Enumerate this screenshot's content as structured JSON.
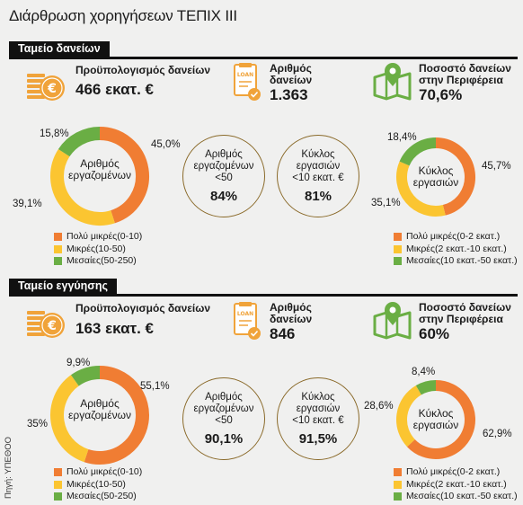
{
  "title": "Διάρθρωση χορηγήσεων ΤΕΠΙΧ ΙΙΙ",
  "source": "Πηγή: ΥΠΕΘΟΟ",
  "colors": {
    "orange": "#f07d33",
    "yellow": "#fbc531",
    "green": "#6aae44",
    "icon_orange": "#f0a33a",
    "icon_green": "#6aae44"
  },
  "sections": [
    {
      "header": "Ταμείο δανείων",
      "kpi_budget": {
        "label": "Προϋπολογισμός δανείων",
        "value": "466 εκατ. €",
        "icon": "coins-icon"
      },
      "kpi_count": {
        "label_1": "Αριθμός",
        "label_2": "δανείων",
        "value": "1.363",
        "icon": "loan-document-icon",
        "icon_text": "LOAN"
      },
      "kpi_region": {
        "label_1": "Ποσοστό δανείων",
        "label_2": "στην Περιφέρεια",
        "value": "70,6%",
        "icon": "map-pin-icon"
      },
      "employees_label_1": "Αριθμός",
      "employees_label_2": "εργαζομένων",
      "stat_employees": {
        "label_1": "Αριθμός",
        "label_2": "εργαζομένων",
        "label_3": "<50",
        "value": "84%"
      },
      "stat_turnover": {
        "label_1": "Κύκλος",
        "label_2": "εργασιών",
        "label_3": "<10 εκατ. €",
        "value": "81%"
      },
      "turnover_label_1": "Κύκλος",
      "turnover_label_2": "εργασιών"
    },
    {
      "header": "Ταμείο εγγύησης",
      "kpi_budget": {
        "label": "Προϋπολογισμός δανείων",
        "value": "163 εκατ. €",
        "icon": "coins-icon"
      },
      "kpi_count": {
        "label_1": "Αριθμός",
        "label_2": "δανείων",
        "value": "846",
        "icon": "loan-document-icon",
        "icon_text": "LOAN"
      },
      "kpi_region": {
        "label_1": "Ποσοστό δανείων",
        "label_2": "στην Περιφέρεια",
        "value": "60%",
        "icon": "map-pin-icon"
      },
      "employees_label_1": "Αριθμός",
      "employees_label_2": "εργαζομένων",
      "stat_employees": {
        "label_1": "Αριθμός",
        "label_2": "εργαζομένων",
        "label_3": "<50",
        "value": "90,1%"
      },
      "stat_turnover": {
        "label_1": "Κύκλος",
        "label_2": "εργασιών",
        "label_3": "<10 εκατ. €",
        "value": "91,5%"
      },
      "turnover_label_1": "Κύκλος",
      "turnover_label_2": "εργασιών"
    }
  ],
  "legends": {
    "employees": [
      {
        "bold": "Πολύ μικρές",
        "rest": " (0-10)"
      },
      {
        "bold": "Μικρές",
        "rest": " (10-50)"
      },
      {
        "bold": "Μεσαίες",
        "rest": " (50-250)"
      }
    ],
    "turnover": [
      {
        "bold": "Πολύ μικρές",
        "rest": " (0-2 εκατ.)"
      },
      {
        "bold": "Μικρές",
        "rest": " (2 εκατ.-10 εκατ.)"
      },
      {
        "bold": "Μεσαίες",
        "rest": " (10 εκατ.-50 εκατ.)"
      }
    ]
  },
  "chart_data": [
    {
      "type": "pie",
      "title": "Αριθμός εργαζομένων",
      "categories": [
        "Πολύ μικρές (0-10)",
        "Μικρές (10-50)",
        "Μεσαίες (50-250)"
      ],
      "values": [
        45.0,
        39.1,
        15.8
      ],
      "labels": [
        "45,0%",
        "39,1%",
        "15,8%"
      ]
    },
    {
      "type": "pie",
      "title": "Κύκλος εργασιών",
      "categories": [
        "Πολύ μικρές (0-2 εκατ.)",
        "Μικρές (2 εκατ.-10 εκατ.)",
        "Μεσαίες (10 εκατ.-50 εκατ.)"
      ],
      "values": [
        45.7,
        35.1,
        18.4
      ],
      "labels": [
        "45,7%",
        "35,1%",
        "18,4%"
      ]
    },
    {
      "type": "pie",
      "title": "Αριθμός εργαζομένων",
      "categories": [
        "Πολύ μικρές (0-10)",
        "Μικρές (10-50)",
        "Μεσαίες (50-250)"
      ],
      "values": [
        55.1,
        35,
        9.9
      ],
      "labels": [
        "55,1%",
        "35%",
        "9,9%"
      ]
    },
    {
      "type": "pie",
      "title": "Κύκλος εργασιών",
      "categories": [
        "Πολύ μικρές (0-2 εκατ.)",
        "Μικρές (2 εκατ.-10 εκατ.)",
        "Μεσαίες (10 εκατ.-50 εκατ.)"
      ],
      "values": [
        62.9,
        28.6,
        8.4
      ],
      "labels": [
        "62,9%",
        "28,6%",
        "8,4%"
      ]
    }
  ]
}
